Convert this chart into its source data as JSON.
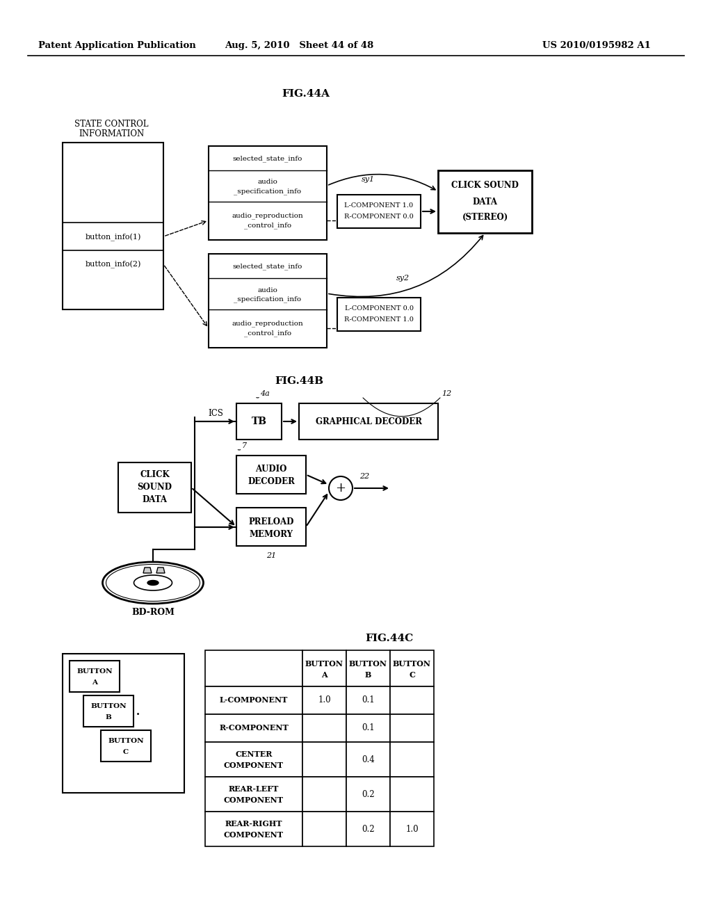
{
  "bg_color": "#ffffff",
  "header_left": "Patent Application Publication",
  "header_mid": "Aug. 5, 2010   Sheet 44 of 48",
  "header_right": "US 2010/0195982 A1",
  "fig44a_title": "FIG.44A",
  "fig44b_title": "FIG.44B",
  "fig44c_title": "FIG.44C"
}
